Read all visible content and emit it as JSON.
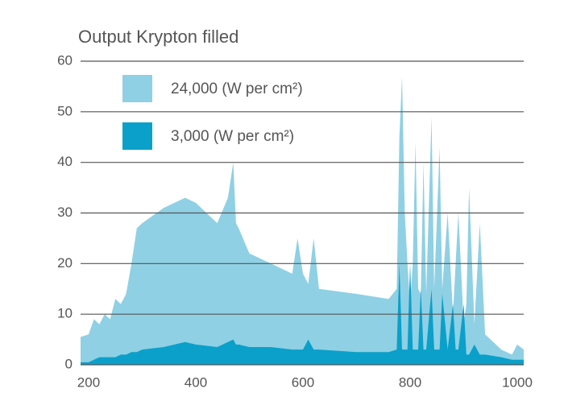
{
  "chart_data": {
    "type": "area",
    "title": "Output Krypton filled",
    "x": [
      185,
      200,
      210,
      220,
      230,
      240,
      250,
      260,
      270,
      280,
      290,
      300,
      340,
      380,
      400,
      440,
      460,
      470,
      475,
      480,
      500,
      540,
      580,
      590,
      600,
      610,
      620,
      630,
      700,
      760,
      775,
      780,
      785,
      790,
      795,
      800,
      805,
      810,
      815,
      820,
      825,
      830,
      840,
      845,
      855,
      860,
      870,
      880,
      885,
      890,
      900,
      905,
      910,
      920,
      930,
      940,
      970,
      990,
      1000,
      1012
    ],
    "series": [
      {
        "name": "24,000 (W per cm²)",
        "color": "#8fd0e4",
        "values": [
          5.5,
          6,
          9,
          8,
          10,
          9,
          13,
          12,
          14,
          20,
          27,
          28,
          31,
          33,
          32,
          28,
          33,
          40,
          28,
          27,
          22,
          20,
          18,
          25,
          18,
          16,
          25,
          15,
          14,
          13,
          15,
          45,
          57,
          30,
          20,
          12,
          20,
          44,
          15,
          14,
          40,
          14,
          49,
          15,
          43,
          15,
          30,
          10,
          20,
          30,
          8,
          12,
          35,
          8,
          28,
          6,
          3,
          2,
          4,
          3
        ]
      },
      {
        "name": "3,000 (W per cm²)",
        "color": "#0aa0c9",
        "values": [
          0.5,
          0.5,
          1,
          1.5,
          1.5,
          1.5,
          1.5,
          2,
          2,
          2.5,
          2.5,
          3,
          3.5,
          4.5,
          4,
          3.5,
          4.5,
          5,
          4,
          4,
          3.5,
          3.5,
          3,
          3,
          3,
          5,
          3,
          3,
          2.5,
          2.5,
          3,
          20,
          3,
          3,
          3,
          20,
          3,
          3,
          3,
          15,
          3,
          3,
          15,
          3,
          3,
          14,
          3,
          12,
          3,
          3,
          12,
          2,
          2,
          4,
          2,
          2,
          1.5,
          1,
          1,
          1
        ]
      }
    ],
    "xlim": [
      185,
      1012
    ],
    "xticks": [
      200,
      400,
      600,
      800,
      1000
    ],
    "ylim": [
      0,
      60
    ],
    "yticks": [
      0,
      10,
      20,
      30,
      40,
      50,
      60
    ],
    "grid": true,
    "legend": "upper-left"
  }
}
